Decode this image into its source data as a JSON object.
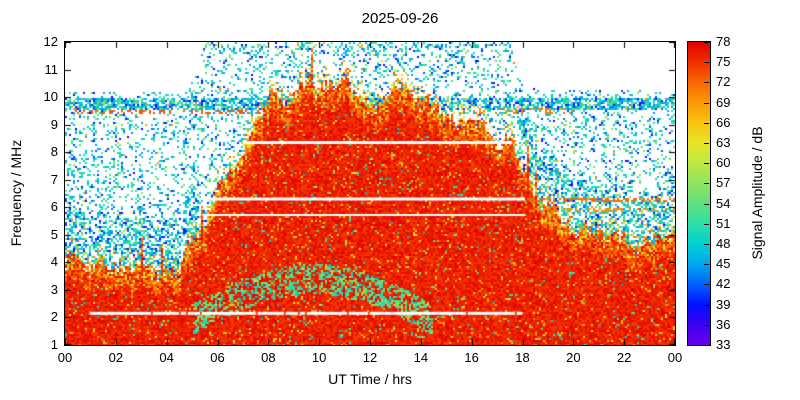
{
  "title": "2025-09-26",
  "axes": {
    "xlabel": "UT Time / hrs",
    "ylabel": "Frequency / MHz",
    "xlim": [
      0,
      24
    ],
    "ylim": [
      1,
      12
    ],
    "x_tick_hours": [
      0,
      2,
      4,
      6,
      8,
      10,
      12,
      14,
      16,
      18,
      20,
      22,
      24
    ],
    "x_tick_labels": [
      "00",
      "02",
      "04",
      "06",
      "08",
      "10",
      "12",
      "14",
      "16",
      "18",
      "20",
      "22",
      "00"
    ],
    "y_ticks": [
      1,
      2,
      3,
      4,
      5,
      6,
      7,
      8,
      9,
      10,
      11,
      12
    ],
    "grid": false
  },
  "colorbar": {
    "label": "Signal Amplitude / dB",
    "min": 33,
    "max": 78,
    "ticks": [
      33,
      36,
      39,
      42,
      45,
      48,
      51,
      54,
      57,
      60,
      63,
      66,
      69,
      72,
      75,
      78
    ],
    "stops": [
      {
        "value": 33,
        "color": "#6a00e8"
      },
      {
        "value": 36,
        "color": "#3c00f0"
      },
      {
        "value": 39,
        "color": "#0010ff"
      },
      {
        "value": 42,
        "color": "#0061ff"
      },
      {
        "value": 45,
        "color": "#00a6f0"
      },
      {
        "value": 48,
        "color": "#00cfd0"
      },
      {
        "value": 51,
        "color": "#2fdfa8"
      },
      {
        "value": 54,
        "color": "#5fe07f"
      },
      {
        "value": 57,
        "color": "#8fe45f"
      },
      {
        "value": 60,
        "color": "#bfe842"
      },
      {
        "value": 63,
        "color": "#e8e428"
      },
      {
        "value": 66,
        "color": "#f9c410"
      },
      {
        "value": 69,
        "color": "#fb9a06"
      },
      {
        "value": 72,
        "color": "#f96702"
      },
      {
        "value": 75,
        "color": "#f23000"
      },
      {
        "value": 78,
        "color": "#e00000"
      }
    ]
  },
  "chart_data": {
    "type": "heatmap",
    "description": "Ionospheric HF signal amplitude spectrogram: strong (red ~72-78 dB) signal region below a diurnal envelope, scattered blue/cyan noise speckle (~39-54 dB) above it, white where no signal.",
    "x_unit": "hours UT",
    "y_unit": "MHz",
    "value_unit": "dB",
    "value_range": [
      33,
      78
    ],
    "seed": 7,
    "base_noise_prob": 0.2,
    "red_envelope": [
      [
        0,
        4.3
      ],
      [
        0.5,
        4.25
      ],
      [
        1,
        4.1
      ],
      [
        1.5,
        4.0
      ],
      [
        2,
        3.9
      ],
      [
        2.5,
        3.8
      ],
      [
        3,
        3.7
      ],
      [
        3.5,
        3.6
      ],
      [
        4,
        3.55
      ],
      [
        4.5,
        3.9
      ],
      [
        5,
        4.8
      ],
      [
        5.5,
        5.6
      ],
      [
        6,
        6.6
      ],
      [
        6.5,
        7.3
      ],
      [
        7,
        8.0
      ],
      [
        7.5,
        8.9
      ],
      [
        8,
        10.0
      ],
      [
        8.3,
        10.3
      ],
      [
        8.6,
        9.6
      ],
      [
        9,
        9.9
      ],
      [
        9.3,
        10.4
      ],
      [
        9.7,
        10.5
      ],
      [
        10,
        10.2
      ],
      [
        10.5,
        10.6
      ],
      [
        11,
        10.8
      ],
      [
        11.3,
        10.4
      ],
      [
        11.6,
        9.9
      ],
      [
        12,
        9.7
      ],
      [
        12.5,
        10.0
      ],
      [
        13,
        10.2
      ],
      [
        13.4,
        10.5
      ],
      [
        13.8,
        10.1
      ],
      [
        14,
        9.8
      ],
      [
        14.5,
        9.6
      ],
      [
        15,
        9.4
      ],
      [
        15.5,
        9.2
      ],
      [
        16,
        9.0
      ],
      [
        16.5,
        8.8
      ],
      [
        17,
        8.6
      ],
      [
        17.5,
        8.5
      ],
      [
        18,
        7.6
      ],
      [
        18.5,
        6.6
      ],
      [
        19,
        6.0
      ],
      [
        19.5,
        5.6
      ],
      [
        20,
        5.3
      ],
      [
        20.5,
        5.1
      ],
      [
        21,
        5.0
      ],
      [
        21.5,
        4.9
      ],
      [
        22,
        4.8
      ],
      [
        22.5,
        4.8
      ],
      [
        23,
        4.9
      ],
      [
        23.5,
        5.0
      ],
      [
        24,
        5.0
      ]
    ],
    "noise_ceiling": [
      [
        0,
        10.2
      ],
      [
        4.8,
        10.2
      ],
      [
        5.2,
        11.0
      ],
      [
        5.5,
        12
      ],
      [
        17.5,
        12
      ],
      [
        17.9,
        10.6
      ],
      [
        18.3,
        10.3
      ],
      [
        24,
        10.2
      ]
    ],
    "dense_band": {
      "f0": 9.55,
      "f1": 10.0,
      "prob": 0.72
    },
    "top_cluster": {
      "f0": 11.5,
      "t0": 5.4,
      "t1": 17.6,
      "prob": 0.3
    },
    "shoulder_density": {
      "prob": 0.5,
      "span": 1.8
    },
    "white_lines": [
      {
        "f": 8.35,
        "t0": 7.0,
        "t1": 17.6,
        "w": 3
      },
      {
        "f": 6.3,
        "t0": 5.4,
        "t1": 18.1,
        "w": 3
      },
      {
        "f": 5.72,
        "t0": 5.4,
        "t1": 18.1,
        "w": 2
      },
      {
        "f": 2.15,
        "t0": 0.9,
        "t1": 18.0,
        "w": 3
      }
    ],
    "dotted_lines": [
      {
        "f": 9.45,
        "t0": 0,
        "t1": 8,
        "prob": 0.3,
        "v": 73
      },
      {
        "f": 9.5,
        "t0": 15.5,
        "t1": 20,
        "prob": 0.25,
        "v": 71
      },
      {
        "f": 6.28,
        "t0": 17.8,
        "t1": 24,
        "prob": 0.5,
        "v": 72
      },
      {
        "f": 5.88,
        "t0": 17.8,
        "t1": 24,
        "prob": 0.35,
        "v": 70
      }
    ],
    "green_arc": {
      "t0": 5,
      "t1": 14.5,
      "f_base": 1.9,
      "amp": 1.5,
      "half_width": 0.55,
      "prob": 0.45
    }
  }
}
